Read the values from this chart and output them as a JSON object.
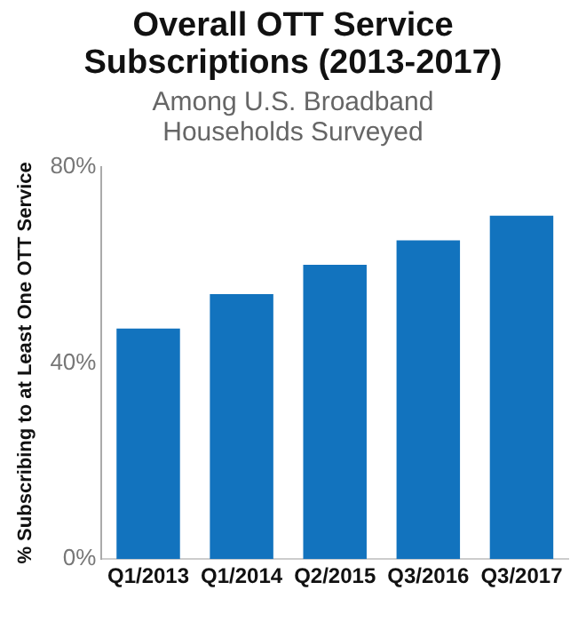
{
  "chart_data": {
    "type": "bar",
    "title": "Overall OTT Service Subscriptions (2013-2017)",
    "subtitle": "Among U.S. Broadband Households Surveyed",
    "ylabel": "% Subscribing to at Least One OTT Service",
    "categories": [
      "Q1/2013",
      "Q1/2014",
      "Q2/2015",
      "Q3/2016",
      "Q3/2017"
    ],
    "values": [
      47,
      54,
      60,
      65,
      70
    ],
    "color": "#1273be",
    "ylim": [
      0,
      80
    ],
    "yticks": [
      {
        "value": 0,
        "label": "0%"
      },
      {
        "value": 40,
        "label": "40%"
      },
      {
        "value": 80,
        "label": "80%"
      }
    ],
    "grid": false,
    "legend": false
  }
}
